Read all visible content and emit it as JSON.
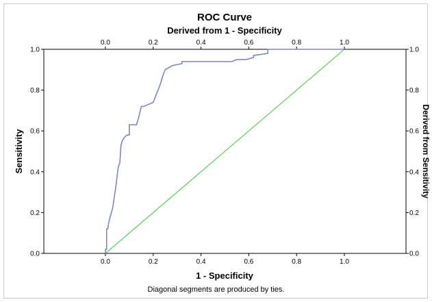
{
  "chart_data": {
    "type": "line",
    "title": "ROC Curve",
    "subtitle": "Derived from 1 - Specificity",
    "xlabel": "1 - Specificity",
    "ylabel": "Sensitivity",
    "y2label": "Derived from Sensitivity",
    "xlim": [
      0,
      1
    ],
    "ylim": [
      0,
      1
    ],
    "x_ticks": [
      "0.0",
      "0.2",
      "0.4",
      "0.6",
      "0.8",
      "1.0"
    ],
    "y_ticks": [
      "0.0",
      "0.2",
      "0.4",
      "0.6",
      "0.8",
      "1.0"
    ],
    "grid": false,
    "footnote": "Diagonal segments are produced by ties.",
    "colors": {
      "curve": "#7a86c4",
      "reference": "#5bd35b",
      "axis": "#000000"
    },
    "series": [
      {
        "x": [
          0.0,
          0.0,
          0.005,
          0.005,
          0.01,
          0.012,
          0.02,
          0.025,
          0.03,
          0.04,
          0.045,
          0.05,
          0.055,
          0.06,
          0.065,
          0.065,
          0.07,
          0.08,
          0.09,
          0.1,
          0.1,
          0.11,
          0.13,
          0.14,
          0.14,
          0.15,
          0.16,
          0.2,
          0.22,
          0.23,
          0.24,
          0.25,
          0.28,
          0.32,
          0.32,
          0.53,
          0.55,
          0.59,
          0.62,
          0.62,
          0.68,
          0.68,
          1.0
        ],
        "y": [
          0.0,
          0.02,
          0.02,
          0.12,
          0.12,
          0.14,
          0.18,
          0.2,
          0.22,
          0.3,
          0.34,
          0.39,
          0.43,
          0.44,
          0.53,
          0.53,
          0.55,
          0.57,
          0.58,
          0.58,
          0.63,
          0.63,
          0.63,
          0.67,
          0.67,
          0.72,
          0.72,
          0.74,
          0.8,
          0.83,
          0.87,
          0.9,
          0.92,
          0.93,
          0.94,
          0.94,
          0.95,
          0.95,
          0.96,
          0.97,
          0.98,
          1.0,
          1.0
        ]
      },
      {
        "x": [
          0.0,
          1.0
        ],
        "y": [
          0.0,
          1.0
        ]
      }
    ]
  }
}
